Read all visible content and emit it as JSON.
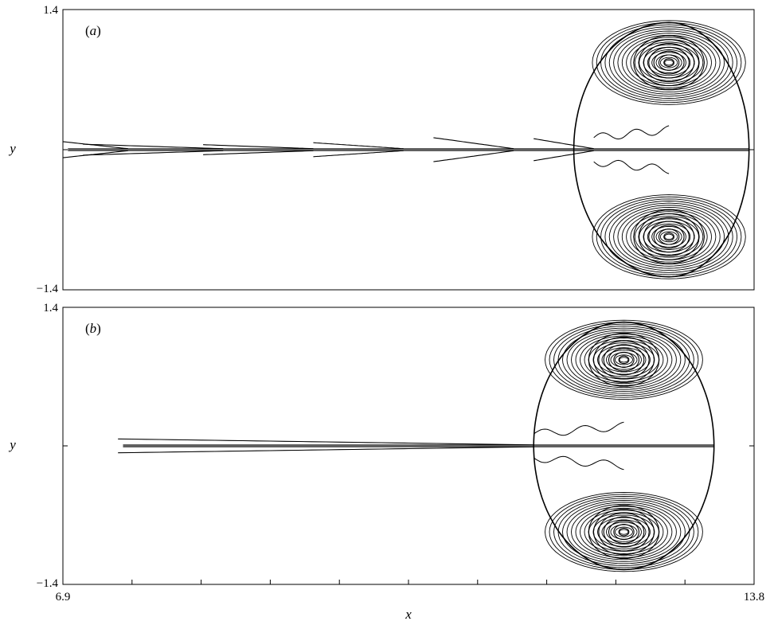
{
  "chart_data": [
    {
      "type": "line",
      "panel_label": {
        "open": "(",
        "letter": "a",
        "close": ")"
      },
      "xlabel": "",
      "ylabel": "y",
      "xlim": [
        6.9,
        13.8
      ],
      "ylim": [
        -1.4,
        1.4
      ],
      "y_ticks": [
        {
          "value": 1.4,
          "label": "1.4"
        },
        {
          "value": 0,
          "label": ""
        },
        {
          "value": -1.4,
          "label": "−1.4"
        }
      ],
      "x_ticks": [],
      "vortex": {
        "center_x": 12.95,
        "core_y": 0.87,
        "top": 1.27,
        "bottom": -1.27,
        "front_x": 13.75,
        "back_x": 12.0,
        "wave_back_x": 12.2
      },
      "wake_start_x": 6.9,
      "wake_features": [
        {
          "x_start": 6.9,
          "x_end": 7.55,
          "half_width": 0.07
        },
        {
          "x_start": 7.1,
          "x_end": 8.5,
          "half_width": 0.045
        },
        {
          "x_start": 8.3,
          "x_end": 9.4,
          "half_width": 0.04
        },
        {
          "x_start": 9.4,
          "x_end": 10.3,
          "half_width": 0.06
        },
        {
          "x_start": 10.6,
          "x_end": 11.4,
          "half_width": 0.11
        },
        {
          "x_start": 11.6,
          "x_end": 12.2,
          "half_width": 0.1
        }
      ],
      "grid": false,
      "legend": "none"
    },
    {
      "type": "line",
      "panel_label": {
        "open": "(",
        "letter": "b",
        "close": ")"
      },
      "xlabel": "x",
      "ylabel": "y",
      "xlim": [
        6.9,
        13.8
      ],
      "ylim": [
        -1.4,
        1.4
      ],
      "y_ticks": [
        {
          "value": 1.4,
          "label": "1.4"
        },
        {
          "value": 0,
          "label": ""
        },
        {
          "value": -1.4,
          "label": "−1.4"
        }
      ],
      "x_ticks": [
        {
          "value": 6.9,
          "label": "6.9"
        },
        {
          "value": 7.59,
          "label": ""
        },
        {
          "value": 8.28,
          "label": ""
        },
        {
          "value": 8.97,
          "label": ""
        },
        {
          "value": 9.66,
          "label": ""
        },
        {
          "value": 10.35,
          "label": ""
        },
        {
          "value": 11.04,
          "label": ""
        },
        {
          "value": 11.73,
          "label": ""
        },
        {
          "value": 12.42,
          "label": ""
        },
        {
          "value": 13.11,
          "label": ""
        },
        {
          "value": 13.8,
          "label": "13.8"
        }
      ],
      "vortex": {
        "center_x": 12.5,
        "core_y": 0.87,
        "top": 1.25,
        "bottom": -1.25,
        "front_x": 13.4,
        "back_x": 11.6,
        "wave_back_x": 11.6
      },
      "wake_start_x": 7.45,
      "wake_features": [
        {
          "x_start": 7.45,
          "x_end": 11.6,
          "half_width": 0.06
        }
      ],
      "grid": false,
      "legend": "none"
    }
  ]
}
